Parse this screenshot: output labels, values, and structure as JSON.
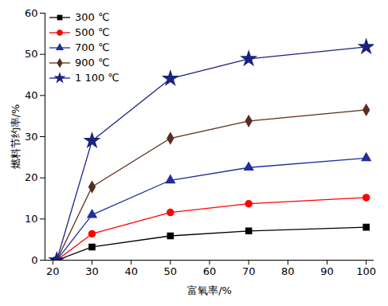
{
  "chart_data": {
    "type": "line",
    "x_label": "富氧率/%",
    "y_label": "燃料节约率/%",
    "x": [
      21,
      30,
      50,
      70,
      100
    ],
    "xlim": [
      18,
      102
    ],
    "xticks": [
      20,
      30,
      40,
      50,
      60,
      70,
      80,
      90,
      100
    ],
    "ylim": [
      0,
      60
    ],
    "yticks": [
      0,
      10,
      20,
      30,
      40,
      50,
      60
    ],
    "grid": false,
    "legend": "top-left",
    "series": [
      {
        "name": "300 ℃",
        "color": "#000000",
        "marker": "square",
        "values": [
          0,
          3.2,
          5.9,
          7.1,
          8.0
        ]
      },
      {
        "name": "500 ℃",
        "color": "#ff0000",
        "marker": "circle",
        "values": [
          0,
          6.4,
          11.6,
          13.7,
          15.2
        ]
      },
      {
        "name": "700 ℃",
        "color": "#1f2f9c",
        "marker": "triangle",
        "values": [
          0,
          11.0,
          19.4,
          22.5,
          24.8
        ]
      },
      {
        "name": "900 ℃",
        "color": "#5a2d1e",
        "marker": "diamond",
        "values": [
          0,
          17.8,
          29.6,
          33.8,
          36.5
        ]
      },
      {
        "name": "1 100 ℃",
        "color": "#1a237e",
        "marker": "star",
        "values": [
          0,
          29.0,
          44.1,
          48.9,
          51.8
        ]
      }
    ]
  }
}
